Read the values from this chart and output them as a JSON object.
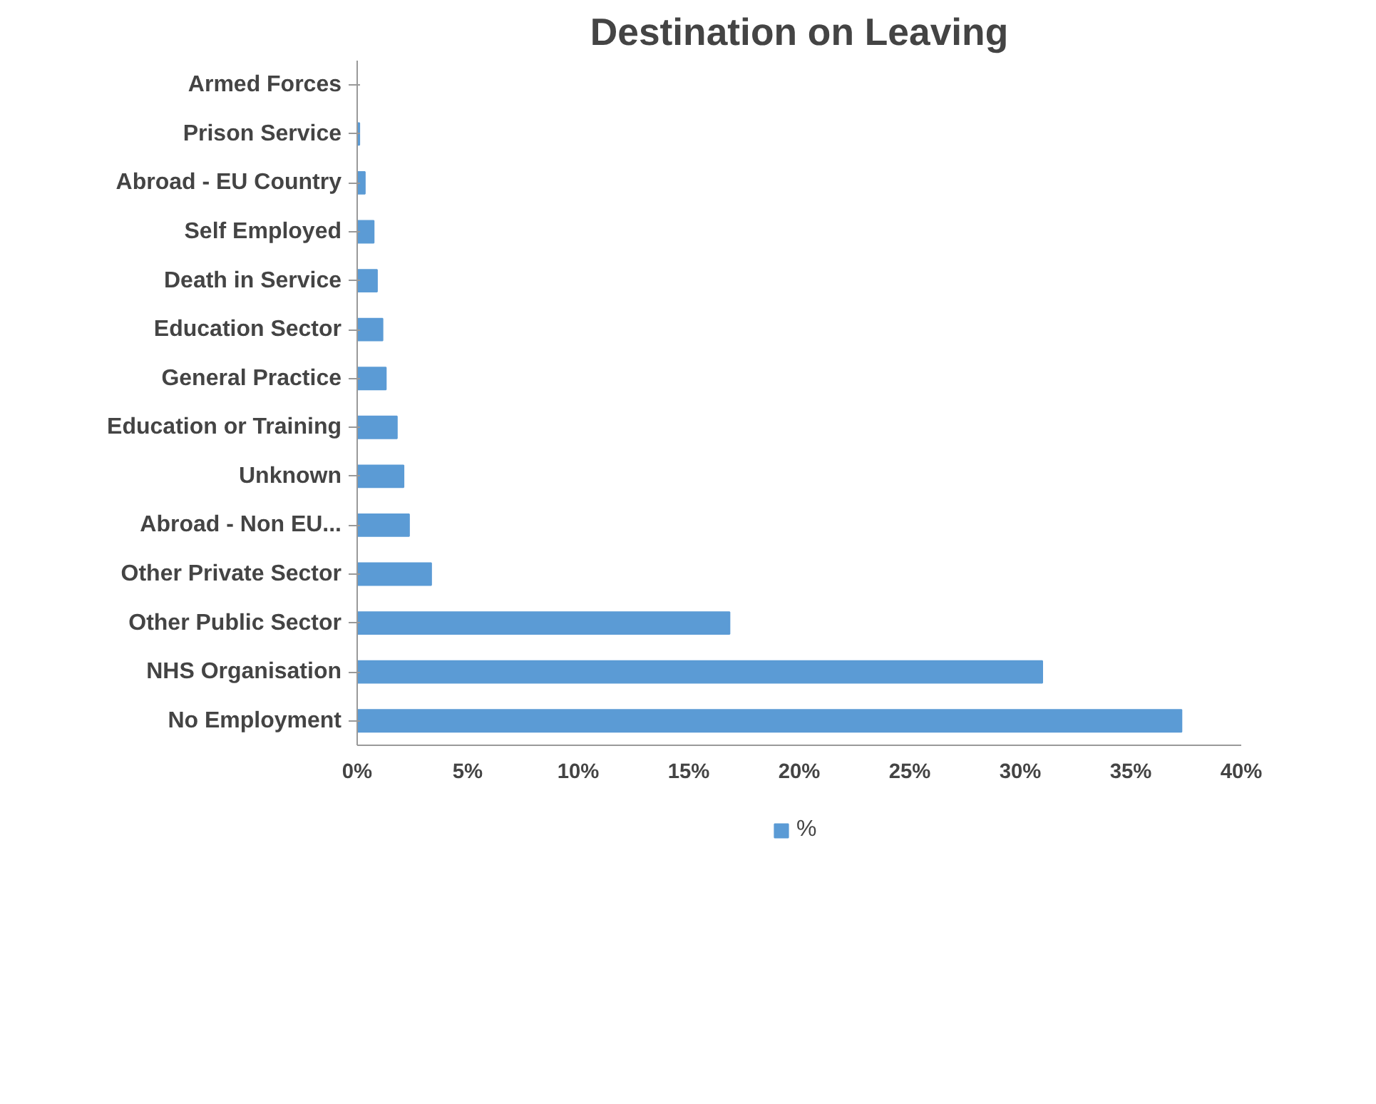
{
  "chart_data": {
    "type": "bar",
    "orientation": "horizontal",
    "title": "Destination on Leaving",
    "categories": [
      "Armed Forces",
      "Prison Service",
      "Abroad - EU Country",
      "Self Employed",
      "Death in Service",
      "Education Sector",
      "General Practice",
      "Education or Training",
      "Unknown",
      "Abroad - Non EU...",
      "Other Private Sector",
      "Other Public Sector",
      "NHS Organisation",
      "No Employment"
    ],
    "series": [
      {
        "name": "%",
        "color": "#5b9bd5",
        "values": [
          0,
          0.1,
          0.35,
          0.75,
          0.9,
          1.15,
          1.3,
          1.8,
          2.1,
          2.35,
          3.35,
          16.85,
          31.0,
          37.3
        ]
      }
    ],
    "xlim": [
      0,
      40
    ],
    "xticks": [
      {
        "value": 0,
        "label": "0%"
      },
      {
        "value": 5,
        "label": "5%"
      },
      {
        "value": 10,
        "label": "10%"
      },
      {
        "value": 15,
        "label": "15%"
      },
      {
        "value": 20,
        "label": "20%"
      },
      {
        "value": 25,
        "label": "25%"
      },
      {
        "value": 30,
        "label": "30%"
      },
      {
        "value": 35,
        "label": "35%"
      },
      {
        "value": 40,
        "label": "40%"
      }
    ],
    "grid": false,
    "legend": "bottom"
  }
}
